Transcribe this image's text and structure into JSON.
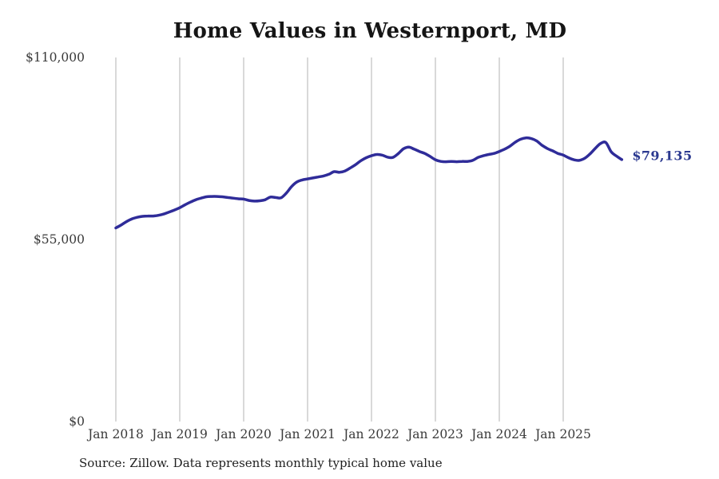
{
  "title": "Home Values in Westernport, MD",
  "source_note": "Source: Zillow. Data represents monthly typical home value",
  "chart_data": {
    "type": "line",
    "title": "Home Values in Westernport, MD",
    "series_name": "Monthly typical home value",
    "x_frequency": "monthly",
    "x_start": "2018-01",
    "x_end": "2025-12",
    "values": [
      58500,
      59400,
      60400,
      61200,
      61700,
      62000,
      62100,
      62100,
      62300,
      62700,
      63300,
      63900,
      64600,
      65500,
      66300,
      67000,
      67500,
      67900,
      68000,
      68000,
      67900,
      67700,
      67500,
      67300,
      67200,
      66800,
      66600,
      66700,
      67000,
      67800,
      67700,
      67600,
      69000,
      71000,
      72400,
      73000,
      73300,
      73600,
      73900,
      74200,
      74700,
      75500,
      75300,
      75700,
      76600,
      77600,
      78800,
      79700,
      80300,
      80700,
      80500,
      79900,
      79800,
      80900,
      82400,
      82900,
      82300,
      81600,
      81000,
      80100,
      79100,
      78600,
      78500,
      78600,
      78500,
      78600,
      78600,
      78900,
      79800,
      80300,
      80700,
      81000,
      81600,
      82300,
      83200,
      84400,
      85300,
      85700,
      85500,
      84800,
      83500,
      82500,
      81800,
      81000,
      80500,
      79700,
      79100,
      78900,
      79500,
      80800,
      82500,
      84000,
      84300,
      81500,
      80200,
      79135
    ],
    "x_tick_labels": [
      "Jan 2018",
      "Jan 2019",
      "Jan 2020",
      "Jan 2021",
      "Jan 2022",
      "Jan 2023",
      "Jan 2024",
      "Jan 2025"
    ],
    "y_ticks": [
      {
        "label": "$110,000",
        "value": 110000
      },
      {
        "label": "$55,000",
        "value": 55000
      },
      {
        "label": "$0",
        "value": 0
      }
    ],
    "ylim": [
      0,
      110000
    ],
    "grid": "vertical-only",
    "legend": "none",
    "end_label": "$79,135",
    "end_value": 79135,
    "line_color": "#2f2c99",
    "end_label_color": "#2b3990",
    "grid_color": "#b3b3b3",
    "tick_text_color": "#3a3a3a"
  }
}
